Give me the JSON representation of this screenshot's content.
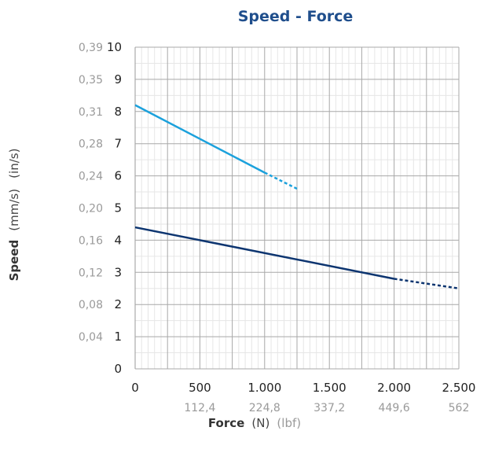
{
  "chart_data": {
    "type": "line",
    "title": "Speed - Force",
    "xlabel": {
      "bold": "Force",
      "unit": "(N)",
      "secondary_unit": "(lbf)"
    },
    "ylabel": {
      "bold": "Speed",
      "unit": "(mm/s)",
      "secondary_unit": "(in/s)"
    },
    "xlim": [
      0,
      2500
    ],
    "ylim": [
      0,
      10
    ],
    "x_ticks": [
      {
        "value": 0,
        "label": "0",
        "secondary": ""
      },
      {
        "value": 500,
        "label": "500",
        "secondary": "112,4"
      },
      {
        "value": 1000,
        "label": "1.000",
        "secondary": "224,8"
      },
      {
        "value": 1500,
        "label": "1.500",
        "secondary": "337,2"
      },
      {
        "value": 2000,
        "label": "2.000",
        "secondary": "449,6"
      },
      {
        "value": 2500,
        "label": "2.500",
        "secondary": "562"
      }
    ],
    "y_ticks": [
      {
        "value": 0,
        "label": "0",
        "secondary": ""
      },
      {
        "value": 1,
        "label": "1",
        "secondary": "0,04"
      },
      {
        "value": 2,
        "label": "2",
        "secondary": "0,08"
      },
      {
        "value": 3,
        "label": "3",
        "secondary": "0,12"
      },
      {
        "value": 4,
        "label": "4",
        "secondary": "0,16"
      },
      {
        "value": 5,
        "label": "5",
        "secondary": "0,20"
      },
      {
        "value": 6,
        "label": "6",
        "secondary": "0,24"
      },
      {
        "value": 7,
        "label": "7",
        "secondary": "0,28"
      },
      {
        "value": 8,
        "label": "8",
        "secondary": "0,31"
      },
      {
        "value": 9,
        "label": "9",
        "secondary": "0,35"
      },
      {
        "value": 10,
        "label": "10",
        "secondary": "0,39"
      }
    ],
    "grid": true,
    "minor_grid": true,
    "series": [
      {
        "color": "#1ba1dc",
        "solid": [
          [
            0,
            8.2
          ],
          [
            1000,
            6.1
          ]
        ],
        "dotted": [
          [
            1000,
            6.1
          ],
          [
            1250,
            5.6
          ]
        ]
      },
      {
        "color": "#0d3570",
        "solid": [
          [
            0,
            4.4
          ],
          [
            2000,
            2.8
          ]
        ],
        "dotted": [
          [
            2000,
            2.8
          ],
          [
            2500,
            2.5
          ]
        ]
      }
    ]
  }
}
